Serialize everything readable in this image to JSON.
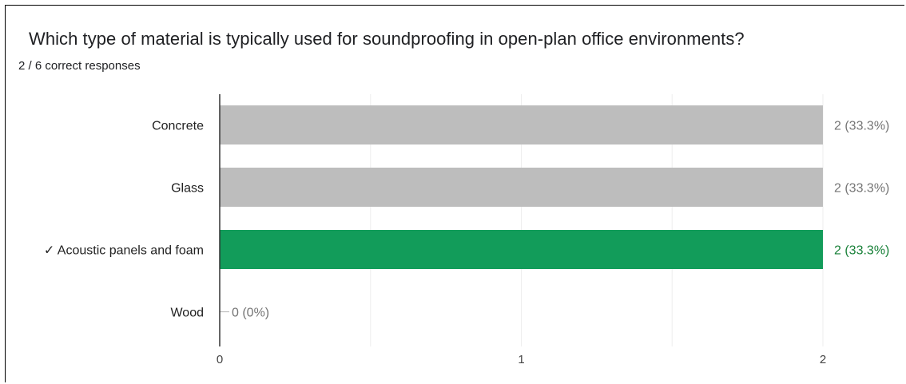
{
  "question": {
    "title": "Which type of material is typically used for soundproofing in open-plan office environments?",
    "summary": "2 / 6 correct responses"
  },
  "colors": {
    "incorrect_bar": "#bdbdbd",
    "correct_bar": "#129c5a",
    "incorrect_label": "#757575",
    "correct_label": "#188038",
    "grid": "#eeeeee",
    "axis": "#333333"
  },
  "chart_data": {
    "type": "bar",
    "orientation": "horizontal",
    "title": "",
    "xlabel": "",
    "ylabel": "",
    "categories": [
      "Concrete",
      "Glass",
      "Acoustic panels and foam",
      "Wood"
    ],
    "values": [
      2,
      2,
      2,
      0
    ],
    "value_labels": [
      "2 (33.3%)",
      "2 (33.3%)",
      "2 (33.3%)",
      "0 (0%)"
    ],
    "correct": [
      false,
      false,
      true,
      false
    ],
    "correct_marker": "✓",
    "xlim": [
      0,
      2
    ],
    "ticks": [
      "0",
      "1",
      "2"
    ],
    "grid": true,
    "legend": "none"
  }
}
